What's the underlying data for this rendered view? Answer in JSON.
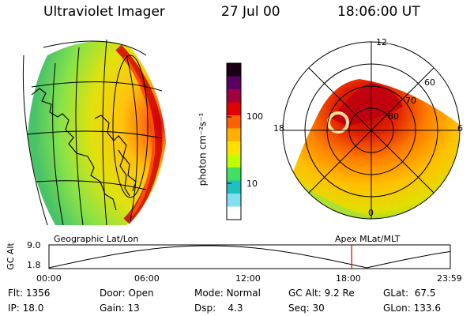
{
  "header": {
    "instrument": "Ultraviolet Imager",
    "date": "27 Jul 00",
    "time": "18:06:00 UT"
  },
  "colorbar": {
    "unit": "photon cm⁻²s⁻¹",
    "ticks": [
      "100",
      "10"
    ],
    "colors": [
      "#1a0010",
      "#5a0060",
      "#a00040",
      "#e00000",
      "#ff6000",
      "#ffb000",
      "#ffe000",
      "#c0ff00",
      "#40e060",
      "#20c0c0",
      "#80e0f0",
      "#ffffff"
    ]
  },
  "polar": {
    "mlt_labels": [
      "12",
      "18",
      "6",
      "0"
    ],
    "lat_labels": [
      "60",
      "70",
      "80"
    ]
  },
  "strip": {
    "axis_label": "GC Alt",
    "y_max": "9.0",
    "y_min": "1.8",
    "left_label": "Geographic Lat/Lon",
    "right_label": "Apex MLat/MLT",
    "time_ticks": [
      "00:00",
      "06:00",
      "12:00",
      "18:00",
      "23:59"
    ],
    "current_time_hours": 18.1
  },
  "info": {
    "flt": {
      "label": "Flt:",
      "value": "1356"
    },
    "ip": {
      "label": "IP:",
      "value": "18.0"
    },
    "door": {
      "label": "Door:",
      "value": "Open"
    },
    "gain": {
      "label": "Gain:",
      "value": "13"
    },
    "mode": {
      "label": "Mode:",
      "value": "Normal"
    },
    "dsp": {
      "label": "Dsp:",
      "value": "4.3"
    },
    "gcalt": {
      "label": "GC Alt:",
      "value": "9.2 Re"
    },
    "seq": {
      "label": "Seq:",
      "value": "30"
    },
    "glat": {
      "label": "GLat:",
      "value": "67.5"
    },
    "glon": {
      "label": "GLon:",
      "value": "133.6"
    }
  }
}
